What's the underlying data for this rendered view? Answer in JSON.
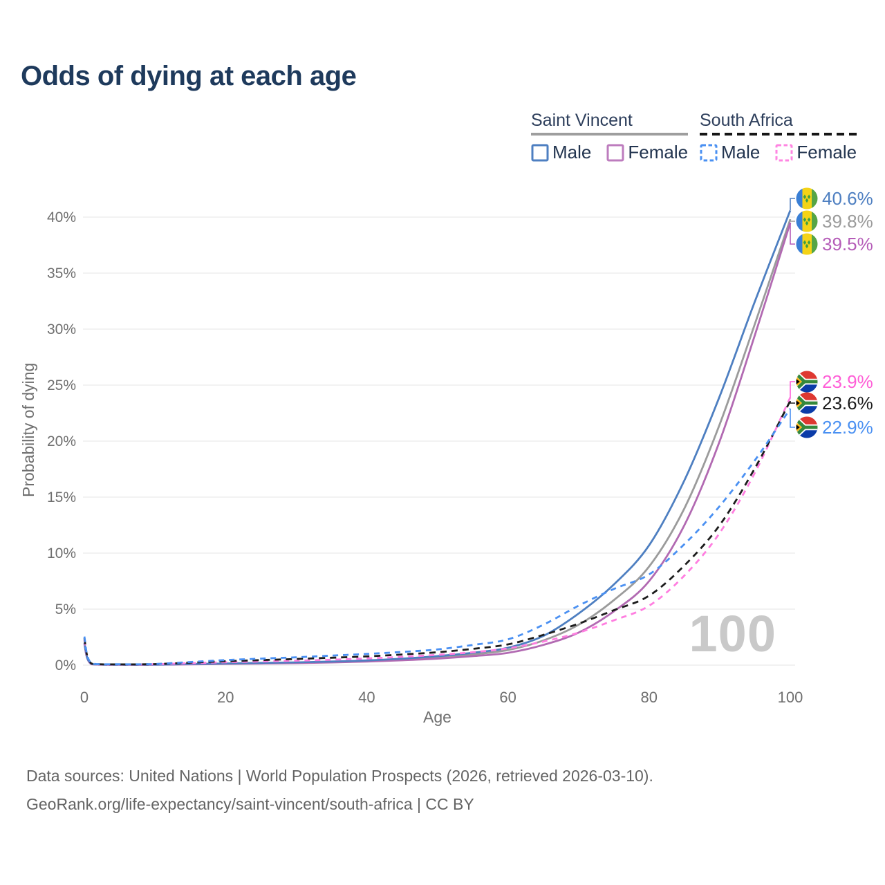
{
  "title": "Odds of dying at each age",
  "legend": {
    "groups": [
      {
        "title": "Saint Vincent",
        "line_style": "solid",
        "items": [
          {
            "label": "Male",
            "color": "#4e7fc1"
          },
          {
            "label": "Female",
            "color": "#bd7cbe"
          }
        ]
      },
      {
        "title": "South Africa",
        "line_style": "dashed",
        "items": [
          {
            "label": "Male",
            "color": "#4a90f2"
          },
          {
            "label": "Female",
            "color": "#ff85e2"
          }
        ]
      }
    ]
  },
  "axes": {
    "x_label": "Age",
    "y_label": "Probability of dying"
  },
  "watermark": "100",
  "footer": {
    "line1": "Data sources: United Nations | World Population Prospects (2026, retrieved 2026-03-10).",
    "line2": "GeoRank.org/life-expectancy/saint-vincent/south-africa | CC BY"
  },
  "chart_data": {
    "type": "line",
    "title": "Odds of dying at each age",
    "xlabel": "Age",
    "ylabel": "Probability of dying",
    "xlim": [
      0,
      100
    ],
    "ylim": [
      0,
      42
    ],
    "x_ticks": [
      0,
      20,
      40,
      60,
      80,
      100
    ],
    "y_ticks": [
      0,
      5,
      10,
      15,
      20,
      25,
      30,
      35,
      40
    ],
    "y_tick_suffix": "%",
    "grid": "horizontal",
    "legend_position": "top-right",
    "ages": [
      0,
      1,
      5,
      10,
      15,
      20,
      25,
      30,
      35,
      40,
      45,
      50,
      55,
      60,
      65,
      70,
      75,
      80,
      85,
      90,
      95,
      100
    ],
    "series": [
      {
        "id": "saint-vincent-total",
        "name": "Saint Vincent Both sexes",
        "color": "#9b9b9b",
        "dash": null,
        "values": [
          1.95,
          0.09,
          0.04,
          0.05,
          0.09,
          0.13,
          0.17,
          0.22,
          0.28,
          0.37,
          0.5,
          0.68,
          0.95,
          1.35,
          2.2,
          3.6,
          5.8,
          8.8,
          14.0,
          21.5,
          30.5,
          39.8
        ]
      },
      {
        "id": "saint-vincent-female",
        "name": "Saint Vincent Female",
        "color": "#b26ab2",
        "dash": null,
        "values": [
          1.9,
          0.08,
          0.04,
          0.04,
          0.07,
          0.11,
          0.14,
          0.18,
          0.24,
          0.32,
          0.43,
          0.58,
          0.8,
          1.1,
          1.8,
          2.9,
          4.8,
          7.5,
          12.5,
          20.0,
          29.5,
          39.5
        ]
      },
      {
        "id": "saint-vincent-male",
        "name": "Saint Vincent Male",
        "color": "#4e7fc1",
        "dash": null,
        "values": [
          2.0,
          0.1,
          0.05,
          0.05,
          0.1,
          0.15,
          0.2,
          0.25,
          0.32,
          0.42,
          0.58,
          0.8,
          1.1,
          1.55,
          2.6,
          4.6,
          7.2,
          10.7,
          16.5,
          24.0,
          32.5,
          40.6
        ]
      },
      {
        "id": "south-africa-female",
        "name": "South Africa Female",
        "color": "#ff7ee0",
        "dash": "8 7",
        "values": [
          2.25,
          0.12,
          0.06,
          0.08,
          0.17,
          0.26,
          0.33,
          0.4,
          0.48,
          0.6,
          0.74,
          0.92,
          1.15,
          1.5,
          2.1,
          2.9,
          4.0,
          5.3,
          8.0,
          11.8,
          17.2,
          23.9
        ]
      },
      {
        "id": "south-africa-total",
        "name": "South Africa Both sexes",
        "color": "#1c1c1c",
        "dash": "9 7",
        "values": [
          2.4,
          0.14,
          0.07,
          0.09,
          0.22,
          0.35,
          0.45,
          0.55,
          0.66,
          0.78,
          0.95,
          1.15,
          1.45,
          1.85,
          2.7,
          3.7,
          4.9,
          6.2,
          8.9,
          12.5,
          17.6,
          23.6
        ]
      },
      {
        "id": "south-africa-male",
        "name": "South Africa Male",
        "color": "#4a90f2",
        "dash": "8 7",
        "values": [
          2.55,
          0.16,
          0.08,
          0.1,
          0.28,
          0.45,
          0.58,
          0.7,
          0.85,
          1.0,
          1.18,
          1.4,
          1.8,
          2.3,
          3.6,
          5.3,
          6.8,
          8.1,
          10.8,
          14.2,
          18.3,
          22.9
        ]
      }
    ],
    "end_labels": [
      {
        "text": "40.6%",
        "value": 40.6,
        "color": "#4e7fc1",
        "flag": "saint-vincent",
        "series": "Saint Vincent Male"
      },
      {
        "text": "39.8%",
        "value": 39.8,
        "color": "#9b9b9b",
        "flag": "saint-vincent",
        "series": "Saint Vincent Both sexes"
      },
      {
        "text": "39.5%",
        "value": 39.5,
        "color": "#b55cb8",
        "flag": "saint-vincent",
        "series": "Saint Vincent Female"
      },
      {
        "text": "23.9%",
        "value": 23.9,
        "color": "#ff5fd7",
        "flag": "south-africa",
        "series": "South Africa Female"
      },
      {
        "text": "23.6%",
        "value": 23.6,
        "color": "#1c1c1c",
        "flag": "south-africa",
        "series": "South Africa Both sexes"
      },
      {
        "text": "22.9%",
        "value": 22.9,
        "color": "#4a90f2",
        "flag": "south-africa",
        "series": "South Africa Male"
      }
    ]
  }
}
